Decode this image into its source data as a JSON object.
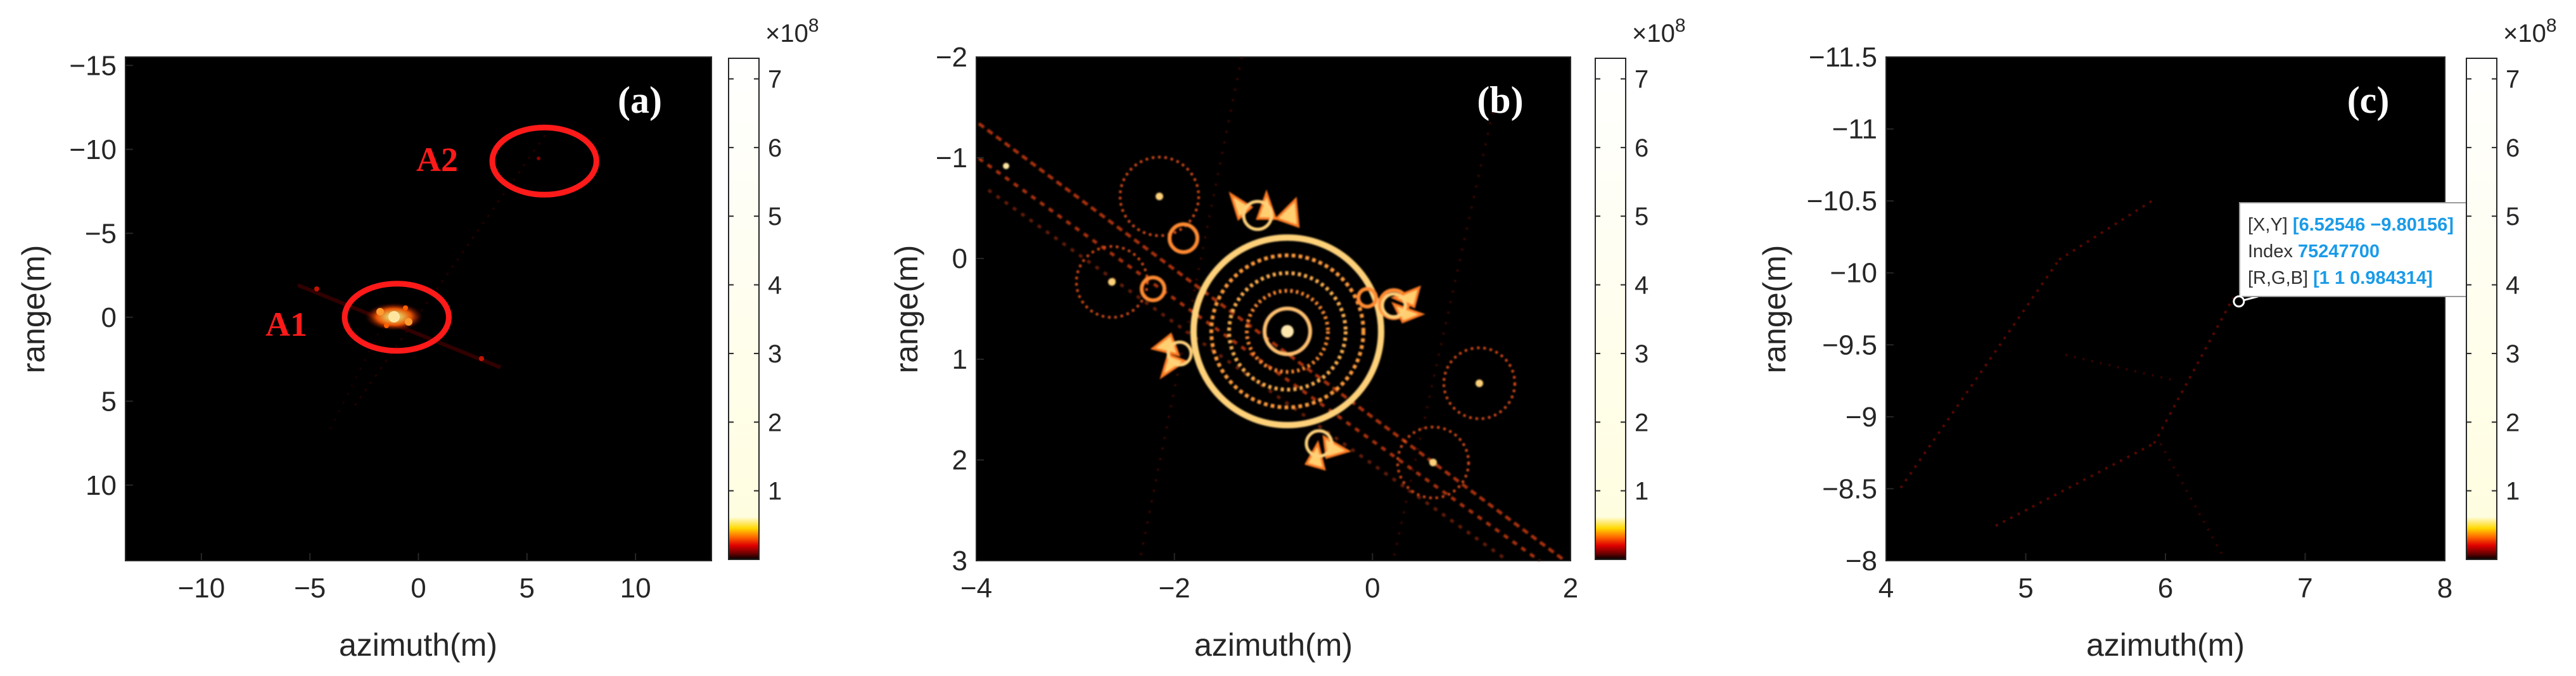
{
  "chart_data": [
    {
      "type": "heatmap",
      "panel_label": "(a)",
      "xlabel": "azimuth(m)",
      "ylabel": "range(m)",
      "xlim": [
        -13.5,
        13.5
      ],
      "ylim": [
        -15.5,
        14.5
      ],
      "y_reversed": true,
      "xticks": [
        -10,
        -5,
        0,
        5,
        10
      ],
      "xtick_labels": [
        "−10",
        "−5",
        "0",
        "5",
        "10"
      ],
      "yticks": [
        -15,
        -10,
        -5,
        0,
        5,
        10
      ],
      "ytick_labels": [
        "−15",
        "−10",
        "−5",
        "0",
        "5",
        "10"
      ],
      "annotations": [
        {
          "label": "A1",
          "center": [
            -1,
            0
          ],
          "rx": 2.4,
          "ry": 2
        },
        {
          "label": "A2",
          "center": [
            5.8,
            -9.3
          ],
          "rx": 2.4,
          "ry": 2
        }
      ],
      "colorbar": {
        "exponent": "×10",
        "exponent_power": "8",
        "ticks": [
          1,
          2,
          3,
          4,
          5,
          6,
          7
        ],
        "tick_labels": [
          "1",
          "2",
          "3",
          "4",
          "5",
          "6",
          "7"
        ],
        "max": 7.3
      }
    },
    {
      "type": "heatmap",
      "panel_label": "(b)",
      "xlabel": "azimuth(m)",
      "ylabel": "range(m)",
      "xlim": [
        -4,
        2
      ],
      "ylim": [
        -2,
        3
      ],
      "y_reversed": true,
      "xticks": [
        -4,
        -2,
        0,
        2
      ],
      "xtick_labels": [
        "−4",
        "−2",
        "0",
        "2"
      ],
      "yticks": [
        -2,
        -1,
        0,
        1,
        2,
        3
      ],
      "ytick_labels": [
        "−2",
        "−1",
        "0",
        "1",
        "2",
        "3"
      ],
      "colorbar": {
        "exponent": "×10",
        "exponent_power": "8",
        "ticks": [
          1,
          2,
          3,
          4,
          5,
          6,
          7
        ],
        "tick_labels": [
          "1",
          "2",
          "3",
          "4",
          "5",
          "6",
          "7"
        ],
        "max": 7.3
      }
    },
    {
      "type": "heatmap",
      "panel_label": "(c)",
      "xlabel": "azimuth(m)",
      "ylabel": "range(m)",
      "xlim": [
        4,
        8
      ],
      "ylim": [
        -11.5,
        -8
      ],
      "y_reversed": true,
      "xticks": [
        4,
        5,
        6,
        7,
        8
      ],
      "xtick_labels": [
        "4",
        "5",
        "6",
        "7",
        "8"
      ],
      "yticks": [
        -11.5,
        -11,
        -10.5,
        -10,
        -9.5,
        -9,
        -8.5,
        -8
      ],
      "ytick_labels": [
        "−11.5",
        "−11",
        "−10.5",
        "−10",
        "−9.5",
        "−9",
        "−8.5",
        "−8"
      ],
      "datatip": {
        "x": 6.52546,
        "y": -9.80156,
        "xy_label": "[X,Y]",
        "xy_value": "[6.52546 −9.80156]",
        "index_label": "Index",
        "index_value": "75247700",
        "rgb_label": "[R,G,B]",
        "rgb_value": "[1 1 0.984314]"
      },
      "colorbar": {
        "exponent": "×10",
        "exponent_power": "8",
        "ticks": [
          1,
          2,
          3,
          4,
          5,
          6,
          7
        ],
        "tick_labels": [
          "1",
          "2",
          "3",
          "4",
          "5",
          "6",
          "7"
        ],
        "max": 7.3
      }
    }
  ]
}
